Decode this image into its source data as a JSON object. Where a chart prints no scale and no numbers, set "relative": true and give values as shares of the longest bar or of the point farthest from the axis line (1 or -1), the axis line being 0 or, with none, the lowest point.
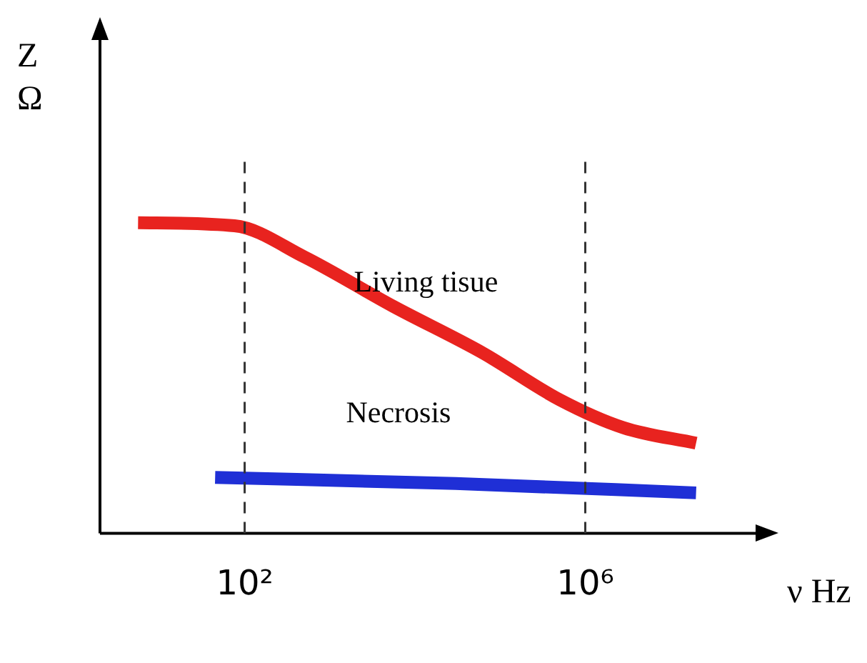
{
  "chart_data": {
    "type": "line",
    "relative": true,
    "xlabel": "ν Hz",
    "ylabel": "Z Ω",
    "log": "x",
    "xlim": [
      2,
      100000000
    ],
    "xticks": [
      {
        "value": 100,
        "label": "10²"
      },
      {
        "value": 1000000,
        "label": "10⁶"
      }
    ],
    "grid": false,
    "legend": false,
    "marker": "none",
    "line_style": "solid",
    "ref_lines": [
      {
        "axis": "x",
        "value": 100,
        "line_style": "dashed",
        "color": "#333333"
      },
      {
        "axis": "x",
        "value": 1000000,
        "line_style": "dashed",
        "color": "#333333"
      }
    ],
    "series": [
      {
        "name": "Living tisue",
        "color": "#e8231f",
        "x": [
          5.6,
          76,
          500,
          5600,
          63000,
          500000,
          2800000,
          20000000
        ],
        "values": [
          1,
          0.99,
          0.89,
          0.73,
          0.58,
          0.43,
          0.34,
          0.29
        ]
      },
      {
        "name": "Necrosis",
        "color": "#1f2fd6",
        "x": [
          45,
          30000,
          20000000
        ],
        "values": [
          0.18,
          0.16,
          0.13
        ]
      }
    ]
  }
}
